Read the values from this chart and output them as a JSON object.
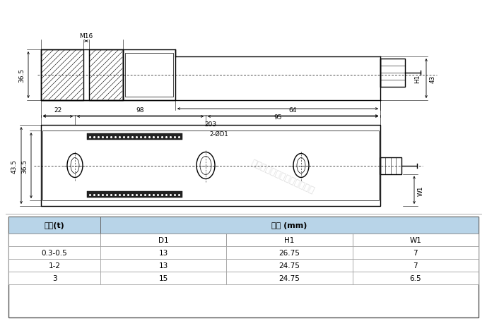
{
  "background_color": "#ffffff",
  "line_color": "#000000",
  "table_header_bg": "#b8d4e8",
  "watermark_text": "广州众鑫自动化科技有限公司",
  "top_view": {
    "dim_36_5": "36.5",
    "dim_43": "43",
    "dim_H1": "H1",
    "dim_95": "95",
    "dim_203": "203",
    "dim_M16": "M16"
  },
  "front_view": {
    "dim_22": "22",
    "dim_98": "98",
    "dim_64": "64",
    "dim_43_5": "43.5",
    "dim_36_5": "36.5",
    "dim_2_OD1": "2-ØD1",
    "dim_W1": "W1"
  },
  "table": {
    "header1_col1": "容量(t)",
    "header1_col2": "尺寸 (mm)",
    "sub_headers": [
      "",
      "D1",
      "H1",
      "W1"
    ],
    "rows": [
      [
        "0.3-0.5",
        "13",
        "26.75",
        "7"
      ],
      [
        "1-2",
        "13",
        "24.75",
        "7"
      ],
      [
        "3",
        "15",
        "24.75",
        "6.5"
      ]
    ]
  }
}
